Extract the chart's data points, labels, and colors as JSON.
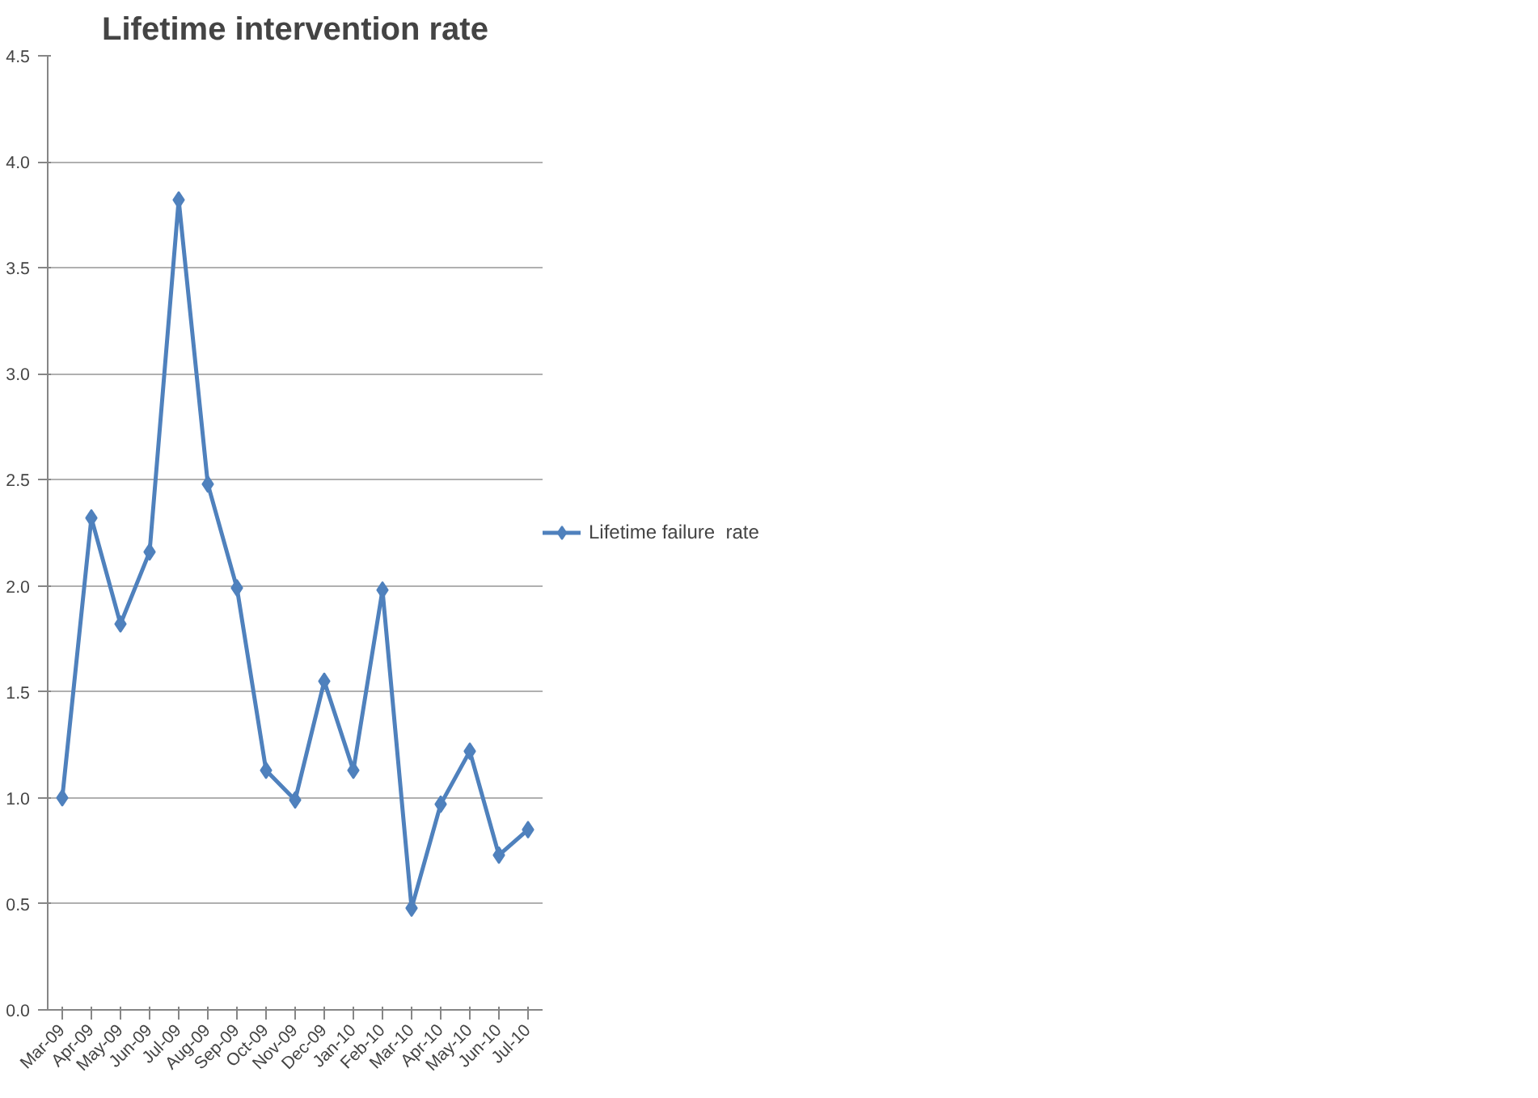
{
  "chart_data": {
    "type": "line",
    "title": "Lifetime intervention rate",
    "categories": [
      "Mar-09",
      "Apr-09",
      "May-09",
      "Jun-09",
      "Jul-09",
      "Aug-09",
      "Sep-09",
      "Oct-09",
      "Nov-09",
      "Dec-09",
      "Jan-10",
      "Feb-10",
      "Mar-10",
      "Apr-10",
      "May-10",
      "Jun-10",
      "Jul-10"
    ],
    "series": [
      {
        "name": "Lifetime failure  rate",
        "color": "#4f81bd",
        "values": [
          1.0,
          2.32,
          1.82,
          2.16,
          3.82,
          2.48,
          1.99,
          1.13,
          0.99,
          1.55,
          1.13,
          1.98,
          0.48,
          0.97,
          1.22,
          0.73,
          0.85
        ]
      }
    ],
    "ylim": [
      0,
      4.5
    ],
    "yticks": [
      {
        "value": 0,
        "label": "0.0"
      },
      {
        "value": 0.5,
        "label": "0.5"
      },
      {
        "value": 1,
        "label": "1.0"
      },
      {
        "value": 1.5,
        "label": "1.5"
      },
      {
        "value": 2,
        "label": "2.0"
      },
      {
        "value": 2.5,
        "label": "2.5"
      },
      {
        "value": 3,
        "label": "3.0"
      },
      {
        "value": 3.5,
        "label": "3.5"
      },
      {
        "value": 4,
        "label": "4.0"
      },
      {
        "value": 4.5,
        "label": "4.5"
      }
    ],
    "grid": "y",
    "legend": "right",
    "marker": "diamond",
    "line_style": "solid"
  }
}
